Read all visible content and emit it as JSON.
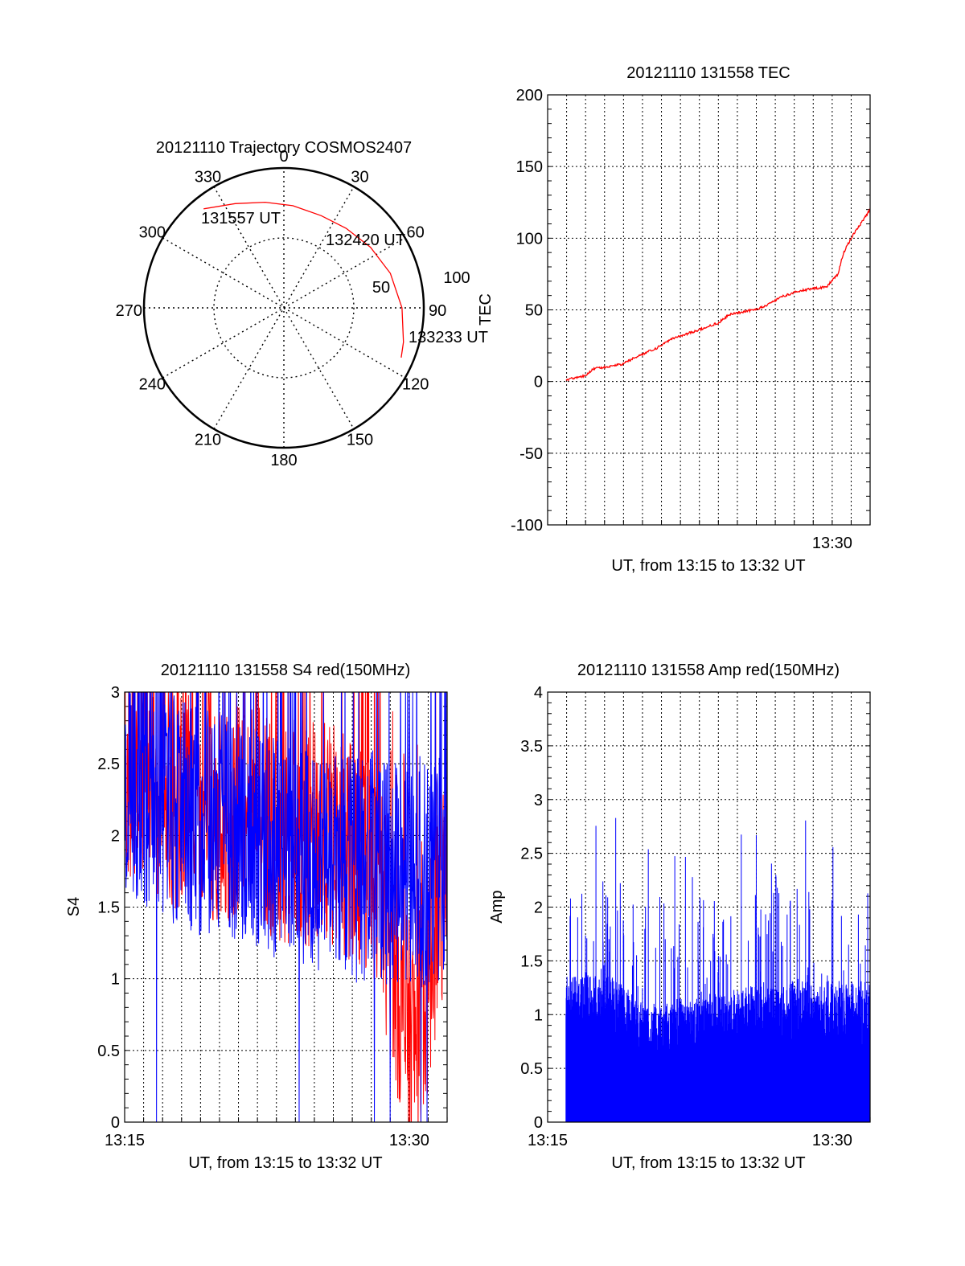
{
  "chart_data": [
    {
      "type": "polar",
      "title": "20121110 Trajectory COSMOS2407",
      "azimuth_labels": [
        "0",
        "30",
        "60",
        "90",
        "120",
        "150",
        "180",
        "210",
        "240",
        "270",
        "300",
        "330"
      ],
      "elevation_ring_labels": [
        "50",
        "100"
      ],
      "trajectory": {
        "color": "#ff0000",
        "start_label": "131557 UT",
        "mid_label": "132420 UT",
        "end_label": "133233 UT",
        "points": [
          {
            "az": 321,
            "el": 8
          },
          {
            "az": 335,
            "el": 16
          },
          {
            "az": 350,
            "el": 21
          },
          {
            "az": 5,
            "el": 24
          },
          {
            "az": 22,
            "el": 26
          },
          {
            "az": 38,
            "el": 25
          },
          {
            "az": 55,
            "el": 22
          },
          {
            "az": 72,
            "el": 18
          },
          {
            "az": 90,
            "el": 14
          },
          {
            "az": 106,
            "el": 10
          },
          {
            "az": 113,
            "el": 8
          }
        ]
      }
    },
    {
      "type": "line",
      "title": "20121110 131558 TEC",
      "ylabel": "TEC",
      "xlabel": "UT, from 13:15 to 13:32 UT",
      "xlim": [
        13.25,
        13.5333
      ],
      "ylim": [
        -100,
        200
      ],
      "yticks": [
        "200",
        "150",
        "100",
        "50",
        "0",
        "-50",
        "-100"
      ],
      "xticks": [
        {
          "x": 13.5,
          "label": "13:30"
        }
      ],
      "grid": true,
      "series": [
        {
          "color": "#ff0000",
          "points": [
            [
              13.2661,
              1
            ],
            [
              13.275,
              3
            ],
            [
              13.283,
              4
            ],
            [
              13.29,
              9
            ],
            [
              13.3,
              10
            ],
            [
              13.315,
              12
            ],
            [
              13.33,
              18
            ],
            [
              13.345,
              23
            ],
            [
              13.36,
              30
            ],
            [
              13.375,
              34
            ],
            [
              13.39,
              38
            ],
            [
              13.4,
              41
            ],
            [
              13.41,
              47
            ],
            [
              13.425,
              49
            ],
            [
              13.44,
              52
            ],
            [
              13.455,
              59
            ],
            [
              13.47,
              63
            ],
            [
              13.485,
              65
            ],
            [
              13.495,
              66
            ],
            [
              13.505,
              75
            ],
            [
              13.51,
              90
            ],
            [
              13.518,
              102
            ],
            [
              13.525,
              110
            ],
            [
              13.5333,
              120
            ]
          ]
        }
      ]
    },
    {
      "type": "line",
      "title": "20121110 131558 S4 red(150MHz)",
      "ylabel": "S4",
      "xlabel": "UT, from 13:15 to 13:32 UT",
      "xlim": [
        13.25,
        13.5333
      ],
      "ylim": [
        0,
        3
      ],
      "yticks": [
        "3",
        "2.5",
        "2",
        "1.5",
        "1",
        "0.5",
        "0"
      ],
      "xticks": [
        {
          "x": 13.25,
          "label": "13:15"
        },
        {
          "x": 13.5,
          "label": "13:30"
        }
      ],
      "grid": true,
      "series": [
        {
          "color": "#ff0000",
          "points": [
            [
              13.25,
              2.5
            ],
            [
              13.27,
              2.4
            ],
            [
              13.29,
              2.3
            ],
            [
              13.31,
              2.25
            ],
            [
              13.33,
              2.2
            ],
            [
              13.35,
              2.2
            ],
            [
              13.37,
              2.1
            ],
            [
              13.39,
              2.05
            ],
            [
              13.41,
              2.0
            ],
            [
              13.43,
              2.0
            ],
            [
              13.45,
              1.9
            ],
            [
              13.47,
              1.75
            ],
            [
              13.485,
              1.2
            ],
            [
              13.495,
              0.7
            ],
            [
              13.505,
              0.55
            ],
            [
              13.515,
              0.9
            ],
            [
              13.525,
              1.5
            ],
            [
              13.5333,
              1.7
            ]
          ]
        },
        {
          "color": "#0000ff",
          "points": [
            [
              13.25,
              2.4
            ],
            [
              13.27,
              2.3
            ],
            [
              13.29,
              2.2
            ],
            [
              13.31,
              2.1
            ],
            [
              13.33,
              2.1
            ],
            [
              13.35,
              2.0
            ],
            [
              13.37,
              2.0
            ],
            [
              13.39,
              1.9
            ],
            [
              13.41,
              1.85
            ],
            [
              13.43,
              1.8
            ],
            [
              13.45,
              1.75
            ],
            [
              13.47,
              1.8
            ],
            [
              13.485,
              1.7
            ],
            [
              13.495,
              1.75
            ],
            [
              13.505,
              1.8
            ],
            [
              13.515,
              1.7
            ],
            [
              13.525,
              1.75
            ],
            [
              13.5333,
              1.7
            ]
          ]
        }
      ]
    },
    {
      "type": "line",
      "title": "20121110 131558 Amp red(150MHz)",
      "ylabel": "Amp",
      "xlabel": "UT, from 13:15 to 13:32 UT",
      "xlim": [
        13.25,
        13.5333
      ],
      "ylim": [
        0,
        4
      ],
      "yticks": [
        "4",
        "3.5",
        "3",
        "2.5",
        "2",
        "1.5",
        "1",
        "0.5",
        "0"
      ],
      "xticks": [
        {
          "x": 13.25,
          "label": "13:15"
        },
        {
          "x": 13.5,
          "label": "13:30"
        }
      ],
      "grid": true,
      "series": [
        {
          "color": "#0000ff",
          "points": [
            [
              13.2661,
              1.3
            ],
            [
              13.275,
              1.3
            ],
            [
              13.285,
              1.35
            ],
            [
              13.295,
              1.3
            ],
            [
              13.305,
              1.3
            ],
            [
              13.315,
              1.25
            ],
            [
              13.325,
              1.15
            ],
            [
              13.335,
              1.05
            ],
            [
              13.345,
              1.05
            ],
            [
              13.355,
              1.05
            ],
            [
              13.365,
              1.1
            ],
            [
              13.375,
              1.1
            ],
            [
              13.385,
              1.1
            ],
            [
              13.395,
              1.15
            ],
            [
              13.405,
              1.15
            ],
            [
              13.415,
              1.15
            ],
            [
              13.425,
              1.2
            ],
            [
              13.435,
              1.2
            ],
            [
              13.445,
              1.2
            ],
            [
              13.455,
              1.2
            ],
            [
              13.465,
              1.25
            ],
            [
              13.475,
              1.25
            ],
            [
              13.485,
              1.25
            ],
            [
              13.495,
              1.25
            ],
            [
              13.505,
              1.25
            ],
            [
              13.515,
              1.25
            ],
            [
              13.525,
              1.25
            ],
            [
              13.5333,
              1.25
            ]
          ]
        }
      ]
    }
  ]
}
